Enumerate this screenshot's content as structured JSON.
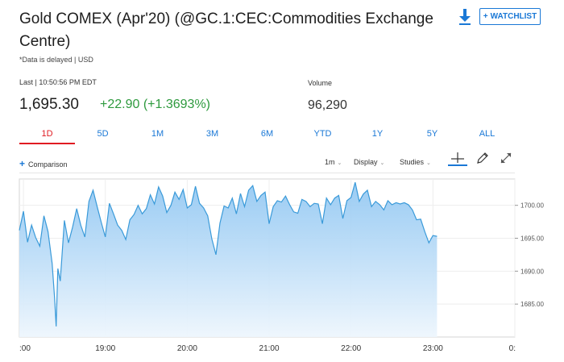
{
  "header": {
    "title": "Gold COMEX (Apr'20) (@GC.1:CEC:Commodities Exchange Centre)",
    "delayed_note": "*Data is delayed | USD",
    "watchlist_label": "WATCHLIST",
    "download_icon": "download-icon"
  },
  "quote": {
    "last_label": "Last | 10:50:56 PM EDT",
    "last_price": "1,695.30",
    "change": "+22.90 (+1.3693%)",
    "change_color": "#2e9a3e",
    "volume_label": "Volume",
    "volume_value": "96,290"
  },
  "range_tabs": [
    {
      "label": "1D",
      "active": true
    },
    {
      "label": "5D",
      "active": false
    },
    {
      "label": "1M",
      "active": false
    },
    {
      "label": "3M",
      "active": false
    },
    {
      "label": "6M",
      "active": false
    },
    {
      "label": "YTD",
      "active": false
    },
    {
      "label": "1Y",
      "active": false
    },
    {
      "label": "5Y",
      "active": false
    },
    {
      "label": "ALL",
      "active": false
    }
  ],
  "chart_toolbar": {
    "comparison_label": "Comparison",
    "interval_label": "1m",
    "display_label": "Display",
    "studies_label": "Studies",
    "icons": [
      "crosshair-icon",
      "draw-pencil-icon",
      "expand-icon"
    ]
  },
  "chart_data": {
    "type": "area",
    "accent_color": "#3a9ad9",
    "fill_top_color": "#8fc6f2",
    "fill_bottom_color": "#eef6fd",
    "y_ticks": [
      "1700.00",
      "1695.00",
      "1690.00",
      "1685.00"
    ],
    "x_ticks": [
      ":00",
      "19:00",
      "20:00",
      "21:00",
      "22:00",
      "23:00",
      "0:"
    ],
    "ylim": [
      1680.0,
      1704.0
    ],
    "xlim": [
      17.95,
      24.0
    ],
    "series": [
      {
        "x": [
          17.95,
          18.0,
          18.05,
          18.1,
          18.15,
          18.2,
          18.25,
          18.3,
          18.35,
          18.38,
          18.4,
          18.42,
          18.45,
          18.5,
          18.55,
          18.6,
          18.65,
          18.7,
          18.75,
          18.8,
          18.85,
          18.9,
          18.95,
          19.0,
          19.05,
          19.1,
          19.15,
          19.2,
          19.25,
          19.3,
          19.35,
          19.4,
          19.45,
          19.5,
          19.55,
          19.6,
          19.65,
          19.7,
          19.75,
          19.8,
          19.85,
          19.9,
          19.95,
          20.0,
          20.05,
          20.1,
          20.15,
          20.2,
          20.25,
          20.3,
          20.35,
          20.4,
          20.45,
          20.5,
          20.55,
          20.6,
          20.65,
          20.7,
          20.75,
          20.8,
          20.85,
          20.9,
          20.95,
          21.0,
          21.05,
          21.1,
          21.15,
          21.2,
          21.25,
          21.3,
          21.35,
          21.4,
          21.45,
          21.5,
          21.55,
          21.6,
          21.65,
          21.7,
          21.75,
          21.8,
          21.85,
          21.9,
          21.95,
          22.0,
          22.05,
          22.1,
          22.15,
          22.2,
          22.25,
          22.3,
          22.35,
          22.4,
          22.45,
          22.5,
          22.55,
          22.6,
          22.65,
          22.7,
          22.75,
          22.8,
          22.85,
          22.9,
          22.95,
          23.0,
          23.05
        ],
        "y": [
          1696.2,
          1699.1,
          1694.4,
          1697.0,
          1695.1,
          1693.8,
          1698.4,
          1696.0,
          1691.2,
          1686.0,
          1681.6,
          1690.4,
          1688.5,
          1697.7,
          1694.3,
          1696.7,
          1699.5,
          1697.0,
          1695.2,
          1700.6,
          1702.3,
          1699.8,
          1697.4,
          1695.2,
          1700.3,
          1698.7,
          1697.0,
          1696.2,
          1694.8,
          1697.8,
          1698.6,
          1700.0,
          1698.7,
          1699.5,
          1701.6,
          1700.2,
          1702.8,
          1701.4,
          1698.9,
          1700.0,
          1702.0,
          1700.9,
          1702.4,
          1699.6,
          1700.1,
          1702.9,
          1700.3,
          1699.6,
          1698.4,
          1694.9,
          1692.5,
          1697.3,
          1699.9,
          1699.6,
          1701.1,
          1698.7,
          1701.8,
          1699.8,
          1702.3,
          1703.0,
          1700.6,
          1701.5,
          1702.0,
          1697.2,
          1699.8,
          1700.7,
          1700.5,
          1701.4,
          1700.1,
          1699.0,
          1698.8,
          1700.9,
          1700.6,
          1699.8,
          1700.3,
          1700.2,
          1697.2,
          1701.1,
          1700.1,
          1701.1,
          1701.5,
          1698.0,
          1700.7,
          1701.2,
          1703.5,
          1700.6,
          1701.7,
          1702.3,
          1699.8,
          1700.6,
          1700.1,
          1699.3,
          1700.7,
          1700.1,
          1700.4,
          1700.2,
          1700.4,
          1700.1,
          1699.3,
          1697.8,
          1697.9,
          1696.0,
          1694.3,
          1695.4,
          1695.3
        ]
      }
    ]
  }
}
